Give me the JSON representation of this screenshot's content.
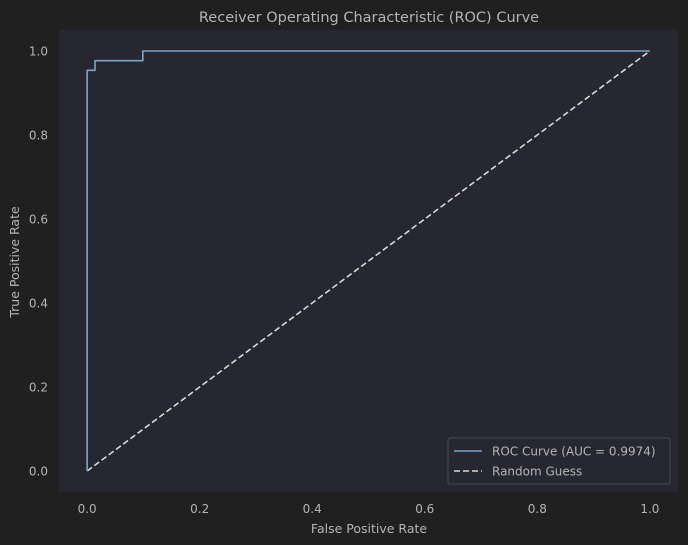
{
  "chart_data": {
    "type": "line",
    "title": "Receiver Operating Characteristic (ROC) Curve",
    "xlabel": "False Positive Rate",
    "ylabel": "True Positive Rate",
    "xlim": [
      -0.05,
      1.05
    ],
    "ylim": [
      -0.05,
      1.05
    ],
    "xticks": [
      0.0,
      0.2,
      0.4,
      0.6,
      0.8,
      1.0
    ],
    "yticks": [
      0.0,
      0.2,
      0.4,
      0.6,
      0.8,
      1.0
    ],
    "grid": false,
    "legend_position": "lower right",
    "series": [
      {
        "name": "ROC Curve (AUC = 0.9974)",
        "style": "solid",
        "color": "#7fa6c4",
        "x": [
          0.0,
          0.0,
          0.0,
          0.0,
          0.0,
          0.0,
          0.0,
          0.014,
          0.014,
          0.099,
          0.099,
          1.0
        ],
        "y": [
          0.0,
          0.954,
          0.954,
          0.954,
          0.954,
          0.954,
          0.954,
          0.954,
          0.977,
          0.977,
          1.0,
          1.0
        ]
      },
      {
        "name": "Random Guess",
        "style": "dashed",
        "color": "#d8d8d8",
        "x": [
          0.0,
          1.0
        ],
        "y": [
          0.0,
          1.0
        ]
      }
    ]
  },
  "colors": {
    "figure_bg": "#202020",
    "axes_bg": "#262730",
    "text": "#b4b4b4",
    "legend_bg": "#262730",
    "legend_border": "#4a4a52"
  }
}
